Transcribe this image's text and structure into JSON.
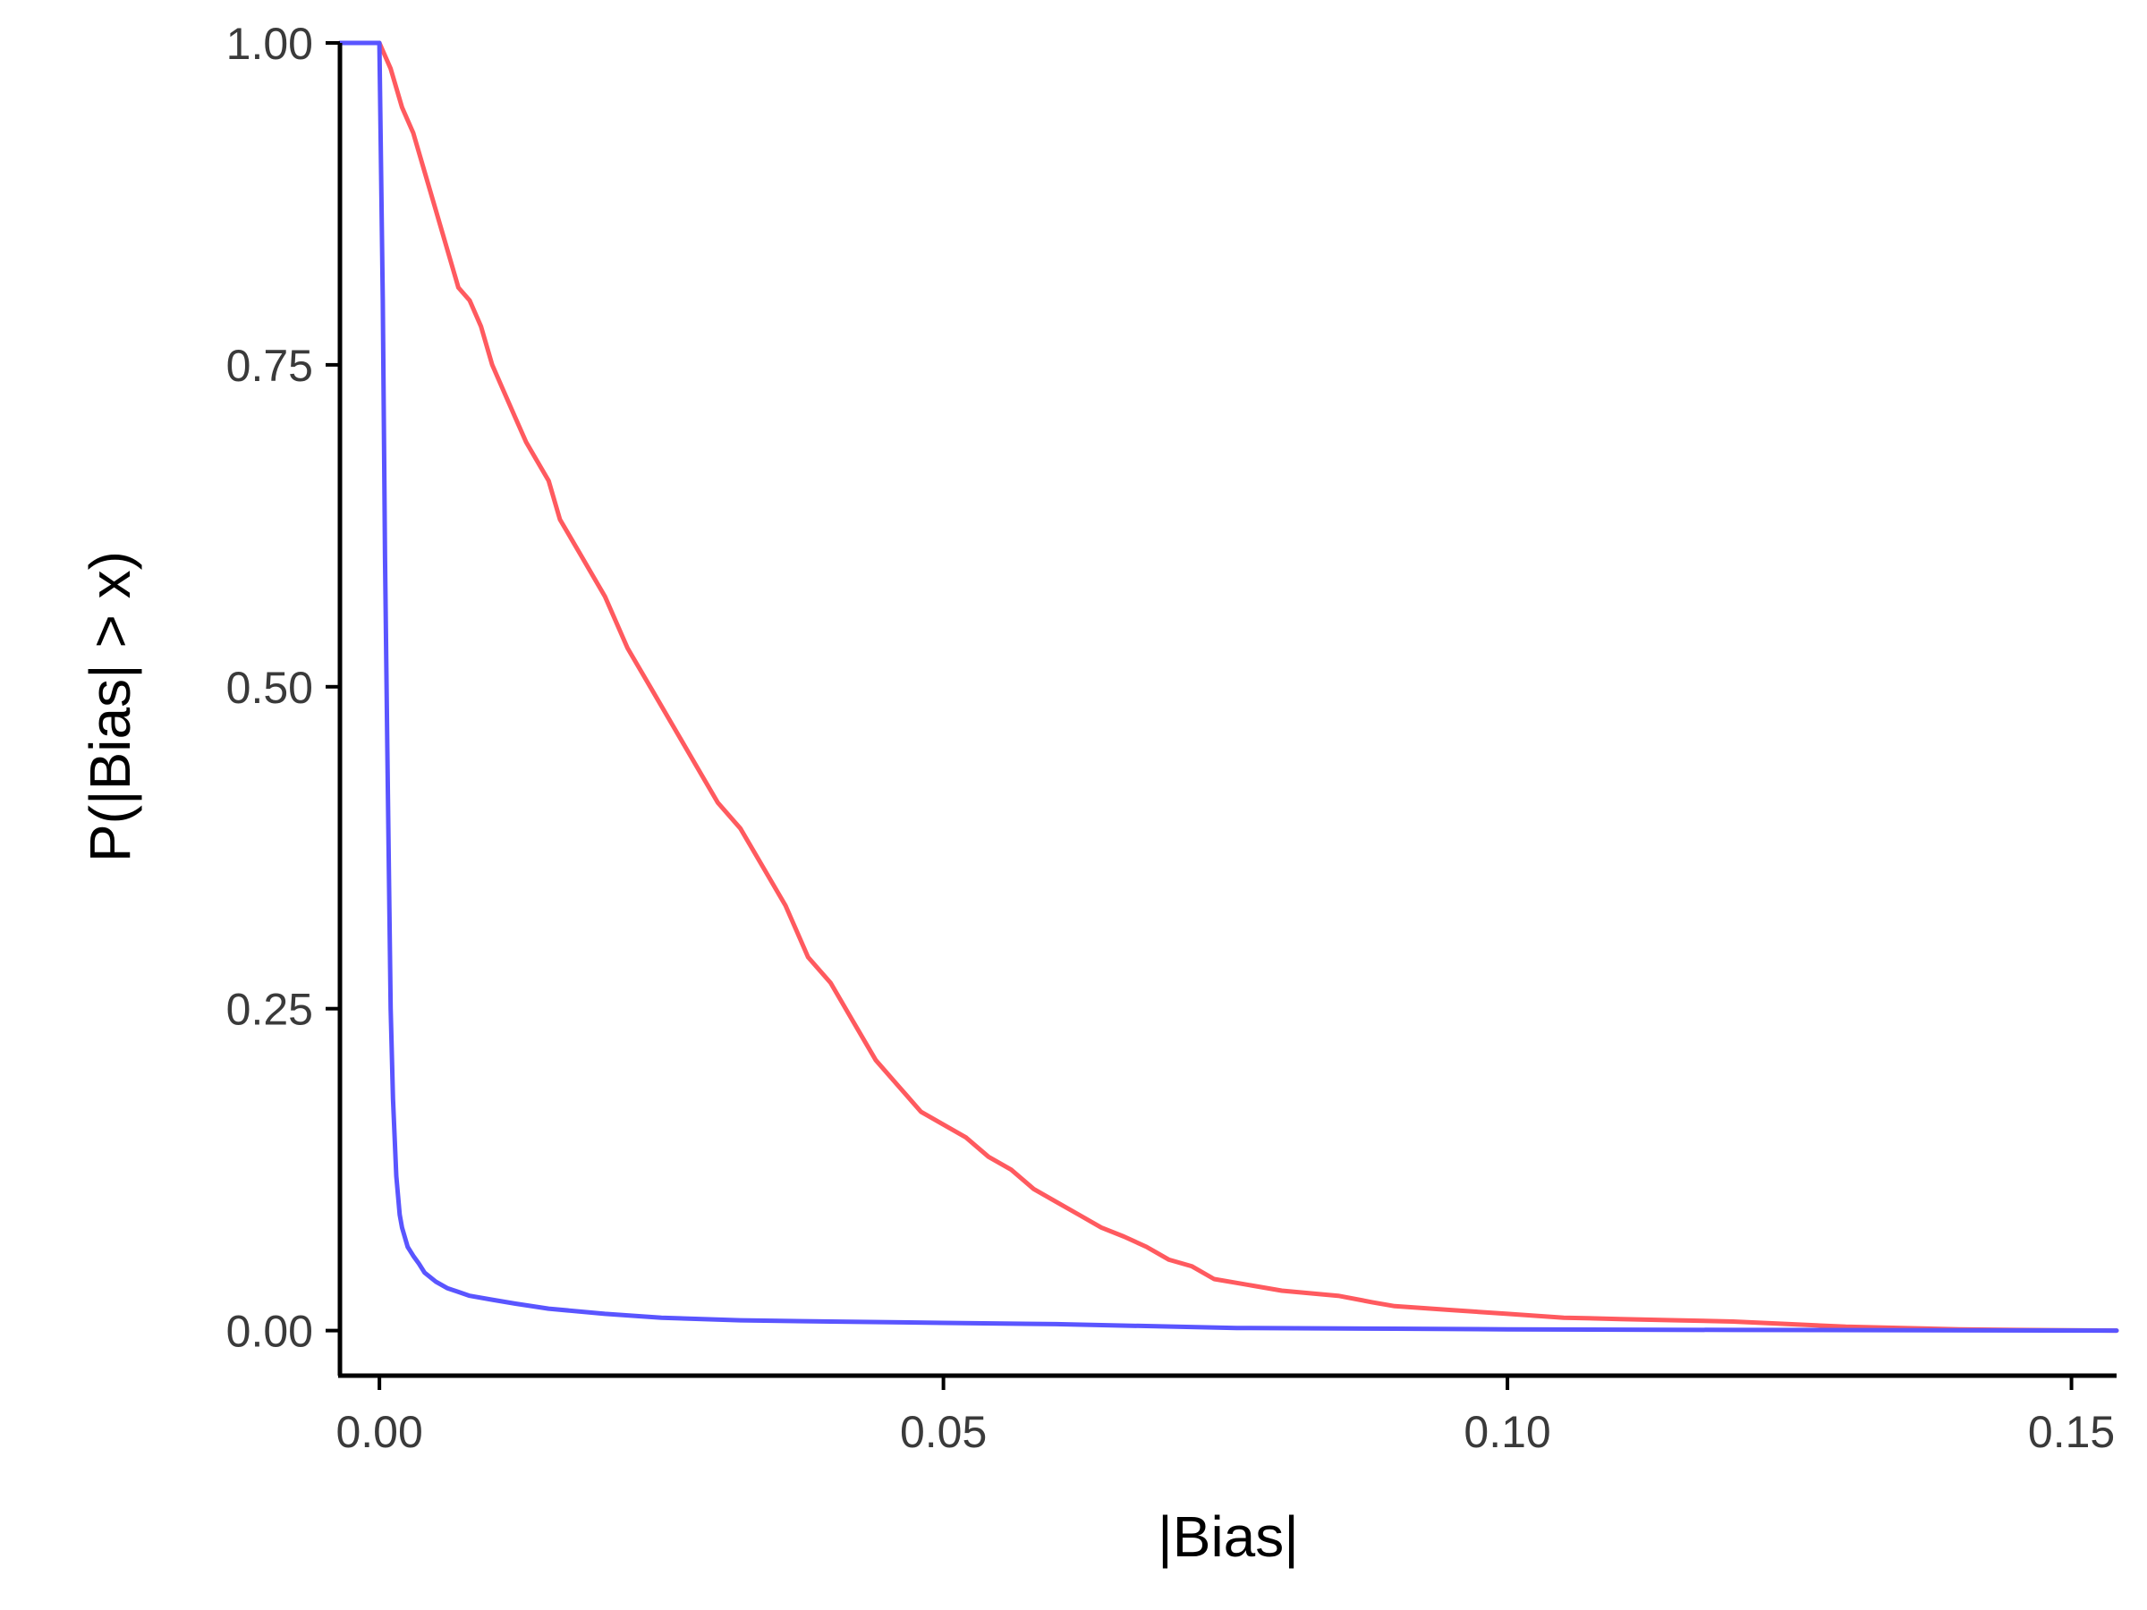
{
  "chart_data": {
    "type": "line",
    "xlabel": "|Bias|",
    "ylabel": "P(|Bias| > x)",
    "xlim": [
      -0.0035,
      0.154
    ],
    "ylim": [
      -0.035,
      1.0
    ],
    "x_ticks": [
      {
        "value": 0.0,
        "label": "0.00"
      },
      {
        "value": 0.05,
        "label": "0.05"
      },
      {
        "value": 0.1,
        "label": "0.10"
      },
      {
        "value": 0.15,
        "label": "0.15"
      }
    ],
    "y_ticks": [
      {
        "value": 0.0,
        "label": "0.00"
      },
      {
        "value": 0.25,
        "label": "0.25"
      },
      {
        "value": 0.5,
        "label": "0.50"
      },
      {
        "value": 0.75,
        "label": "0.75"
      },
      {
        "value": 1.0,
        "label": "1.00"
      }
    ],
    "grid": false,
    "legend": "none",
    "series": [
      {
        "color": "#ff5a5f",
        "points": [
          [
            -0.0035,
            1.0
          ],
          [
            0.0,
            1.0
          ],
          [
            0.001,
            0.98
          ],
          [
            0.002,
            0.95
          ],
          [
            0.003,
            0.93
          ],
          [
            0.004,
            0.9
          ],
          [
            0.005,
            0.87
          ],
          [
            0.006,
            0.84
          ],
          [
            0.007,
            0.81
          ],
          [
            0.008,
            0.8
          ],
          [
            0.009,
            0.78
          ],
          [
            0.01,
            0.75
          ],
          [
            0.011,
            0.73
          ],
          [
            0.012,
            0.71
          ],
          [
            0.013,
            0.69
          ],
          [
            0.015,
            0.66
          ],
          [
            0.016,
            0.63
          ],
          [
            0.018,
            0.6
          ],
          [
            0.02,
            0.57
          ],
          [
            0.022,
            0.53
          ],
          [
            0.024,
            0.5
          ],
          [
            0.026,
            0.47
          ],
          [
            0.028,
            0.44
          ],
          [
            0.03,
            0.41
          ],
          [
            0.032,
            0.39
          ],
          [
            0.034,
            0.36
          ],
          [
            0.036,
            0.33
          ],
          [
            0.038,
            0.29
          ],
          [
            0.04,
            0.27
          ],
          [
            0.042,
            0.24
          ],
          [
            0.044,
            0.21
          ],
          [
            0.046,
            0.19
          ],
          [
            0.048,
            0.17
          ],
          [
            0.05,
            0.16
          ],
          [
            0.052,
            0.15
          ],
          [
            0.054,
            0.135
          ],
          [
            0.056,
            0.125
          ],
          [
            0.058,
            0.11
          ],
          [
            0.06,
            0.1
          ],
          [
            0.062,
            0.09
          ],
          [
            0.064,
            0.08
          ],
          [
            0.066,
            0.073
          ],
          [
            0.068,
            0.065
          ],
          [
            0.07,
            0.055
          ],
          [
            0.072,
            0.05
          ],
          [
            0.074,
            0.04
          ],
          [
            0.076,
            0.037
          ],
          [
            0.08,
            0.031
          ],
          [
            0.085,
            0.027
          ],
          [
            0.088,
            0.022
          ],
          [
            0.09,
            0.019
          ],
          [
            0.095,
            0.016
          ],
          [
            0.1,
            0.013
          ],
          [
            0.105,
            0.01
          ],
          [
            0.11,
            0.009
          ],
          [
            0.115,
            0.008
          ],
          [
            0.12,
            0.007
          ],
          [
            0.125,
            0.005
          ],
          [
            0.13,
            0.003
          ],
          [
            0.135,
            0.002
          ],
          [
            0.14,
            0.001
          ],
          [
            0.145,
            0.0005
          ],
          [
            0.154,
            0.0
          ]
        ]
      },
      {
        "color": "#5a55ff",
        "points": [
          [
            -0.0035,
            1.0
          ],
          [
            0.0,
            1.0
          ],
          [
            0.0003,
            0.8
          ],
          [
            0.0005,
            0.6
          ],
          [
            0.0007,
            0.45
          ],
          [
            0.001,
            0.25
          ],
          [
            0.0012,
            0.18
          ],
          [
            0.0015,
            0.12
          ],
          [
            0.0018,
            0.09
          ],
          [
            0.002,
            0.08
          ],
          [
            0.0025,
            0.065
          ],
          [
            0.003,
            0.058
          ],
          [
            0.0035,
            0.052
          ],
          [
            0.004,
            0.045
          ],
          [
            0.005,
            0.038
          ],
          [
            0.006,
            0.033
          ],
          [
            0.007,
            0.03
          ],
          [
            0.008,
            0.027
          ],
          [
            0.01,
            0.024
          ],
          [
            0.012,
            0.021
          ],
          [
            0.015,
            0.017
          ],
          [
            0.02,
            0.013
          ],
          [
            0.025,
            0.01
          ],
          [
            0.032,
            0.008
          ],
          [
            0.04,
            0.007
          ],
          [
            0.05,
            0.006
          ],
          [
            0.06,
            0.005
          ],
          [
            0.076,
            0.002
          ],
          [
            0.09,
            0.0015
          ],
          [
            0.1,
            0.001
          ],
          [
            0.12,
            0.0005
          ],
          [
            0.154,
            0.0
          ]
        ]
      }
    ]
  }
}
